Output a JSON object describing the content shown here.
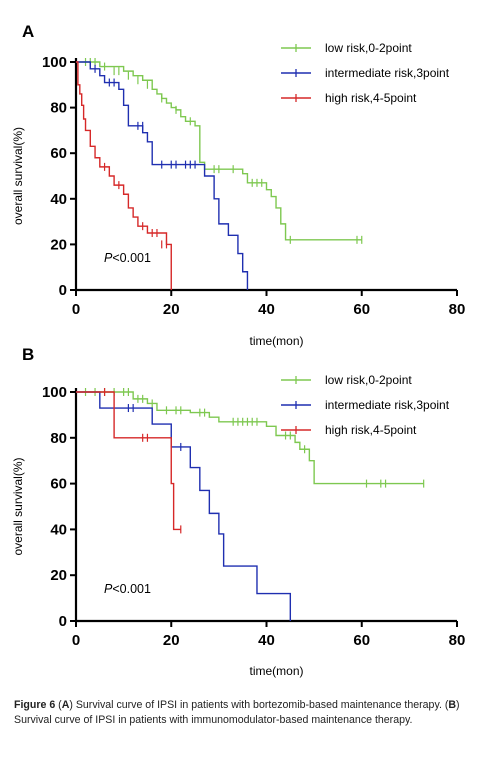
{
  "chart_data": [
    {
      "panel": "A",
      "type": "line",
      "xlabel": "time(mon)",
      "ylabel": "overall survival(%)",
      "xlim": [
        0,
        80
      ],
      "ylim": [
        0,
        100
      ],
      "xticks": [
        "0",
        "20",
        "40",
        "60",
        "80"
      ],
      "yticks": [
        "0",
        "20",
        "40",
        "60",
        "80",
        "100"
      ],
      "annotation": {
        "italic": "P",
        "text": "<0.001"
      },
      "legend_position": "top-right",
      "series": [
        {
          "name": "low risk,0-2point",
          "color": "#7ec850",
          "steps": [
            [
              0,
              100
            ],
            [
              5,
              98
            ],
            [
              10,
              96
            ],
            [
              12,
              94
            ],
            [
              14,
              92
            ],
            [
              16,
              88
            ],
            [
              17,
              86
            ],
            [
              18,
              84
            ],
            [
              19,
              82
            ],
            [
              20,
              80
            ],
            [
              21,
              79
            ],
            [
              22,
              76
            ],
            [
              23,
              74
            ],
            [
              25,
              72
            ],
            [
              26,
              56
            ],
            [
              27,
              53
            ],
            [
              32,
              53
            ],
            [
              35,
              51
            ],
            [
              36,
              47
            ],
            [
              40,
              44
            ],
            [
              41,
              41
            ],
            [
              42,
              36
            ],
            [
              43,
              29
            ],
            [
              44,
              22
            ],
            [
              60,
              22
            ]
          ],
          "censor": [
            [
              2,
              100
            ],
            [
              3,
              100
            ],
            [
              4,
              100
            ],
            [
              6,
              98
            ],
            [
              8,
              96
            ],
            [
              9,
              96
            ],
            [
              11,
              94
            ],
            [
              13,
              92
            ],
            [
              15,
              90
            ],
            [
              18,
              84
            ],
            [
              21,
              79
            ],
            [
              24,
              74
            ],
            [
              29,
              53
            ],
            [
              30,
              53
            ],
            [
              33,
              53
            ],
            [
              37,
              47
            ],
            [
              38,
              47
            ],
            [
              39,
              47
            ],
            [
              45,
              22
            ],
            [
              59,
              22
            ],
            [
              60,
              22
            ]
          ]
        },
        {
          "name": "intermediate risk,3point",
          "color": "#1f2fb0",
          "steps": [
            [
              0,
              100
            ],
            [
              3,
              97
            ],
            [
              5,
              94
            ],
            [
              6,
              91
            ],
            [
              9,
              88
            ],
            [
              10,
              81
            ],
            [
              11,
              72
            ],
            [
              14,
              69
            ],
            [
              15,
              65
            ],
            [
              16,
              55
            ],
            [
              26,
              55
            ],
            [
              27,
              50
            ],
            [
              29,
              40
            ],
            [
              30,
              29
            ],
            [
              32,
              24
            ],
            [
              34,
              16
            ],
            [
              35,
              8
            ],
            [
              36,
              0
            ]
          ],
          "censor": [
            [
              4,
              97
            ],
            [
              7,
              91
            ],
            [
              8,
              91
            ],
            [
              13,
              72
            ],
            [
              14,
              72
            ],
            [
              18,
              55
            ],
            [
              20,
              55
            ],
            [
              21,
              55
            ],
            [
              23,
              55
            ],
            [
              24,
              55
            ],
            [
              25,
              55
            ]
          ]
        },
        {
          "name": "high risk,4-5point",
          "color": "#d62828",
          "steps": [
            [
              0,
              100
            ],
            [
              0.4,
              90
            ],
            [
              0.8,
              86
            ],
            [
              1.2,
              81
            ],
            [
              1.6,
              75
            ],
            [
              2,
              70
            ],
            [
              3,
              63
            ],
            [
              4,
              58
            ],
            [
              5,
              54
            ],
            [
              7,
              50
            ],
            [
              8,
              46
            ],
            [
              10,
              42
            ],
            [
              11,
              36
            ],
            [
              12,
              32
            ],
            [
              13,
              28
            ],
            [
              15,
              25
            ],
            [
              19,
              20
            ],
            [
              20,
              0
            ]
          ],
          "censor": [
            [
              6,
              54
            ],
            [
              9,
              46
            ],
            [
              14,
              28
            ],
            [
              16,
              25
            ],
            [
              17,
              25
            ],
            [
              18,
              20
            ],
            [
              19,
              20
            ]
          ]
        }
      ]
    },
    {
      "panel": "B",
      "type": "line",
      "xlabel": "time(mon)",
      "ylabel": "overall survival(%)",
      "xlim": [
        0,
        80
      ],
      "ylim": [
        0,
        100
      ],
      "xticks": [
        "0",
        "20",
        "40",
        "60",
        "80"
      ],
      "yticks": [
        "0",
        "20",
        "40",
        "60",
        "80",
        "100"
      ],
      "annotation": {
        "italic": "P",
        "text": "<0.001"
      },
      "legend_position": "top-right",
      "series": [
        {
          "name": "low risk,0-2point",
          "color": "#7ec850",
          "steps": [
            [
              0,
              100
            ],
            [
              12,
              97
            ],
            [
              15,
              95
            ],
            [
              17,
              92
            ],
            [
              24,
              91
            ],
            [
              28,
              89
            ],
            [
              30,
              87
            ],
            [
              40,
              85
            ],
            [
              42,
              81
            ],
            [
              46,
              78
            ],
            [
              47,
              75
            ],
            [
              49,
              70
            ],
            [
              50,
              60
            ],
            [
              73,
              60
            ]
          ],
          "censor": [
            [
              2,
              100
            ],
            [
              4,
              100
            ],
            [
              6,
              100
            ],
            [
              8,
              100
            ],
            [
              10,
              100
            ],
            [
              11,
              100
            ],
            [
              13,
              97
            ],
            [
              14,
              97
            ],
            [
              16,
              95
            ],
            [
              19,
              92
            ],
            [
              21,
              92
            ],
            [
              22,
              92
            ],
            [
              26,
              91
            ],
            [
              27,
              91
            ],
            [
              33,
              87
            ],
            [
              34,
              87
            ],
            [
              35,
              87
            ],
            [
              36,
              87
            ],
            [
              37,
              87
            ],
            [
              38,
              87
            ],
            [
              44,
              81
            ],
            [
              45,
              81
            ],
            [
              48,
              75
            ],
            [
              61,
              60
            ],
            [
              64,
              60
            ],
            [
              65,
              60
            ],
            [
              73,
              60
            ]
          ]
        },
        {
          "name": "intermediate risk,3point",
          "color": "#1f2fb0",
          "steps": [
            [
              0,
              100
            ],
            [
              5,
              93
            ],
            [
              16,
              86
            ],
            [
              20,
              76
            ],
            [
              24,
              67
            ],
            [
              26,
              57
            ],
            [
              28,
              47
            ],
            [
              30,
              38
            ],
            [
              31,
              24
            ],
            [
              38,
              12
            ],
            [
              45,
              0
            ]
          ],
          "censor": [
            [
              11,
              93
            ],
            [
              12,
              93
            ],
            [
              22,
              76
            ]
          ]
        },
        {
          "name": "high risk,4-5point",
          "color": "#d62828",
          "steps": [
            [
              0,
              100
            ],
            [
              8,
              80
            ],
            [
              19,
              80
            ],
            [
              20,
              60
            ],
            [
              20.5,
              40
            ],
            [
              22,
              40
            ]
          ],
          "censor": [
            [
              6,
              100
            ],
            [
              14,
              80
            ],
            [
              15,
              80
            ],
            [
              22,
              40
            ]
          ]
        }
      ]
    }
  ],
  "caption": {
    "label": "Figure 6",
    "parts": [
      {
        "b": false,
        "t": " ("
      },
      {
        "b": true,
        "t": "A"
      },
      {
        "b": false,
        "t": ") Survival curve of IPSI in patients with bortezomib-based maintenance therapy. ("
      },
      {
        "b": true,
        "t": "B"
      },
      {
        "b": false,
        "t": ") Survival curve of IPSI in patients with immunomodulator-based maintenance therapy."
      }
    ]
  }
}
